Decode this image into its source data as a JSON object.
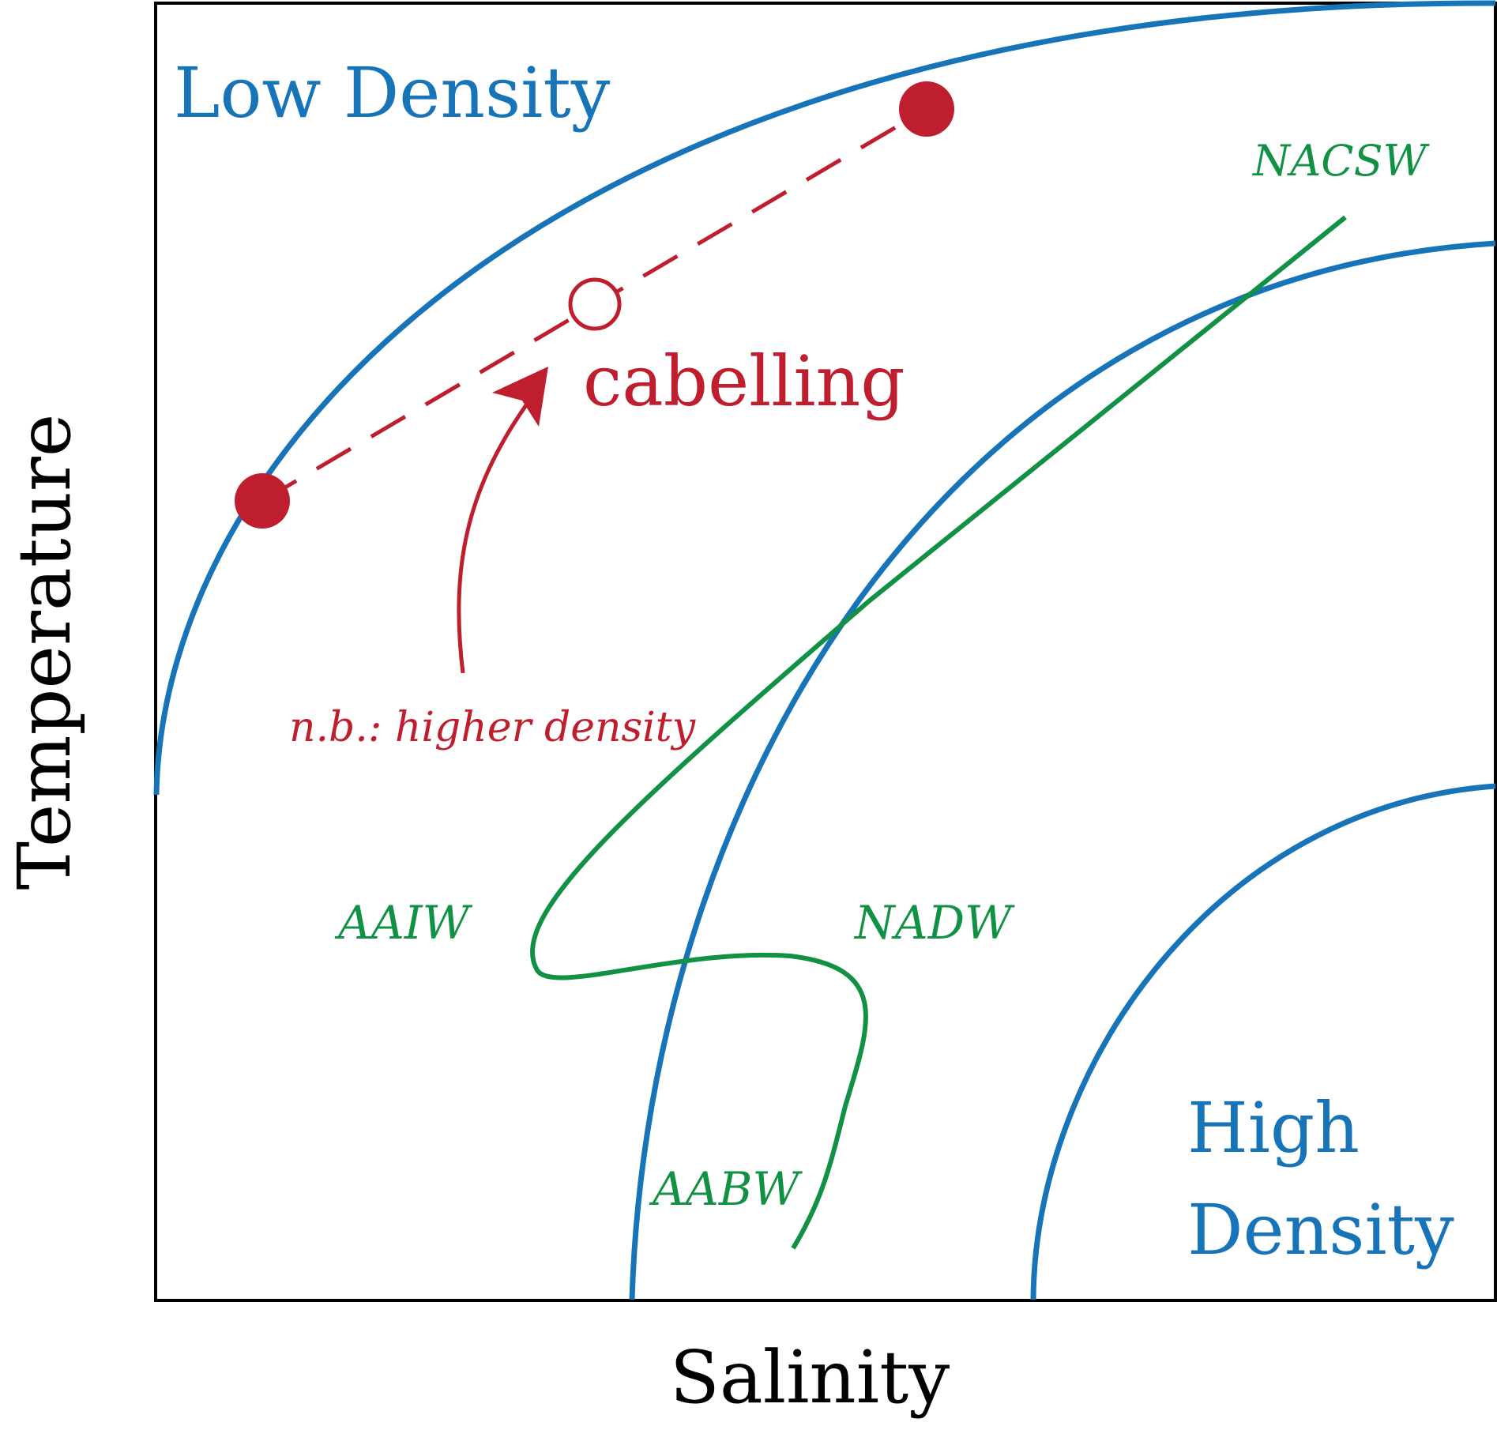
{
  "axes": {
    "x_label": "Salinity",
    "y_label": "Temperature"
  },
  "regions": {
    "low_density": "Low Density",
    "high_density_line1": "High",
    "high_density_line2": "Density"
  },
  "cabelling": {
    "label": "cabelling",
    "note": "n.b.: higher density"
  },
  "water_masses": {
    "nacsw": "NACSW",
    "aaiw": "AAIW",
    "nadw": "NADW",
    "aabw": "AABW"
  },
  "colors": {
    "isopycnal": "#1874b8",
    "cabelling": "#be1e2d",
    "water_mass_curve": "#119143",
    "frame": "#000000"
  }
}
